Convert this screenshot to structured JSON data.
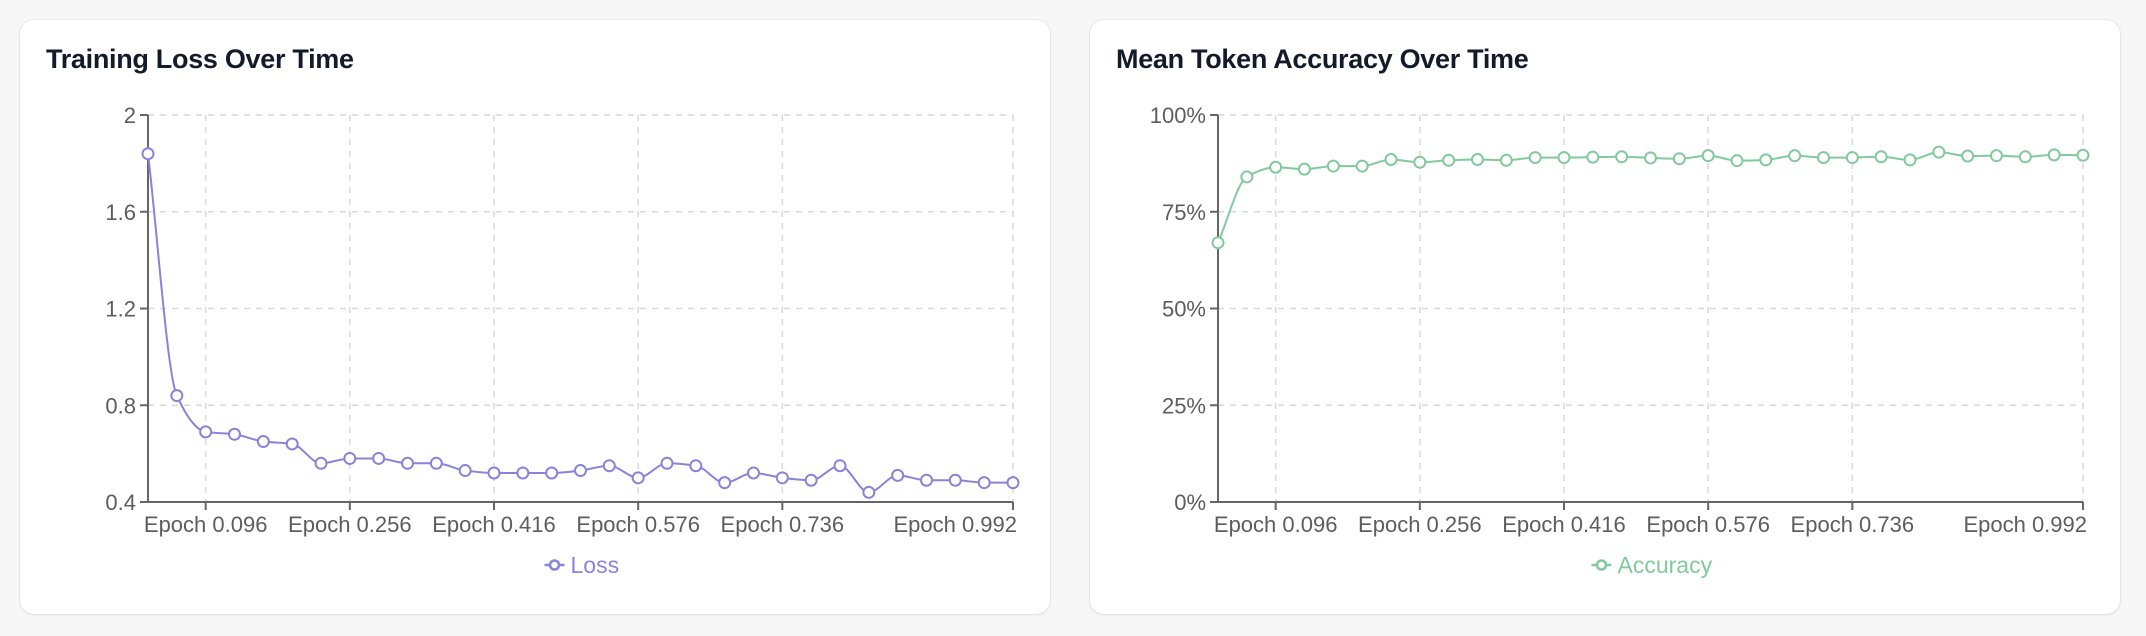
{
  "charts": [
    {
      "title": "Training Loss Over Time",
      "color": "#8884d8",
      "legend": "Loss",
      "y_ticks": [
        "2",
        "1.6",
        "1.2",
        "0.8",
        "0.4"
      ],
      "x_ticks": [
        "Epoch 0.096",
        "Epoch 0.256",
        "Epoch 0.416",
        "Epoch 0.576",
        "Epoch 0.736",
        "Epoch 0.992"
      ]
    },
    {
      "title": "Mean Token Accuracy Over Time",
      "color": "#82ca9d",
      "legend": "Accuracy",
      "y_ticks": [
        "100%",
        "75%",
        "50%",
        "25%",
        "0%"
      ],
      "x_ticks": [
        "Epoch 0.096",
        "Epoch 0.256",
        "Epoch 0.416",
        "Epoch 0.576",
        "Epoch 0.736",
        "Epoch 0.992"
      ]
    }
  ],
  "chart_data": [
    {
      "type": "line",
      "title": "Training Loss Over Time",
      "xlabel": "",
      "ylabel": "",
      "ylim": [
        0.4,
        2.0
      ],
      "grid": true,
      "legend_position": "bottom",
      "x": [
        0.032,
        0.064,
        0.096,
        0.128,
        0.16,
        0.192,
        0.224,
        0.256,
        0.288,
        0.32,
        0.352,
        0.384,
        0.416,
        0.448,
        0.48,
        0.512,
        0.544,
        0.576,
        0.608,
        0.64,
        0.672,
        0.704,
        0.736,
        0.768,
        0.8,
        0.832,
        0.864,
        0.896,
        0.928,
        0.96,
        0.992
      ],
      "x_tick_labels": [
        "Epoch 0.096",
        "Epoch 0.256",
        "Epoch 0.416",
        "Epoch 0.576",
        "Epoch 0.736",
        "Epoch 0.992"
      ],
      "y_tick_labels": [
        "0.4",
        "0.8",
        "1.2",
        "1.6",
        "2"
      ],
      "series": [
        {
          "name": "Loss",
          "color": "#8884d8",
          "values": [
            1.84,
            0.84,
            0.69,
            0.68,
            0.65,
            0.64,
            0.56,
            0.58,
            0.58,
            0.56,
            0.56,
            0.53,
            0.52,
            0.52,
            0.52,
            0.53,
            0.55,
            0.5,
            0.56,
            0.55,
            0.48,
            0.52,
            0.5,
            0.49,
            0.55,
            0.44,
            0.51,
            0.49,
            0.49,
            0.48,
            0.48
          ]
        }
      ]
    },
    {
      "type": "line",
      "title": "Mean Token Accuracy Over Time",
      "xlabel": "",
      "ylabel": "",
      "ylim": [
        0,
        100
      ],
      "grid": true,
      "legend_position": "bottom",
      "x": [
        0.032,
        0.064,
        0.096,
        0.128,
        0.16,
        0.192,
        0.224,
        0.256,
        0.288,
        0.32,
        0.352,
        0.384,
        0.416,
        0.448,
        0.48,
        0.512,
        0.544,
        0.576,
        0.608,
        0.64,
        0.672,
        0.704,
        0.736,
        0.768,
        0.8,
        0.832,
        0.864,
        0.896,
        0.928,
        0.96,
        0.992
      ],
      "x_tick_labels": [
        "Epoch 0.096",
        "Epoch 0.256",
        "Epoch 0.416",
        "Epoch 0.576",
        "Epoch 0.736",
        "Epoch 0.992"
      ],
      "y_tick_labels": [
        "0%",
        "25%",
        "50%",
        "75%",
        "100%"
      ],
      "series": [
        {
          "name": "Accuracy",
          "color": "#82ca9d",
          "values": [
            67.0,
            84.0,
            86.5,
            86.0,
            86.8,
            86.8,
            88.5,
            87.8,
            88.3,
            88.5,
            88.3,
            89.0,
            89.0,
            89.1,
            89.2,
            88.9,
            88.7,
            89.5,
            88.2,
            88.4,
            89.5,
            89.0,
            89.0,
            89.2,
            88.4,
            90.4,
            89.4,
            89.5,
            89.2,
            89.7,
            89.6
          ]
        }
      ]
    }
  ]
}
